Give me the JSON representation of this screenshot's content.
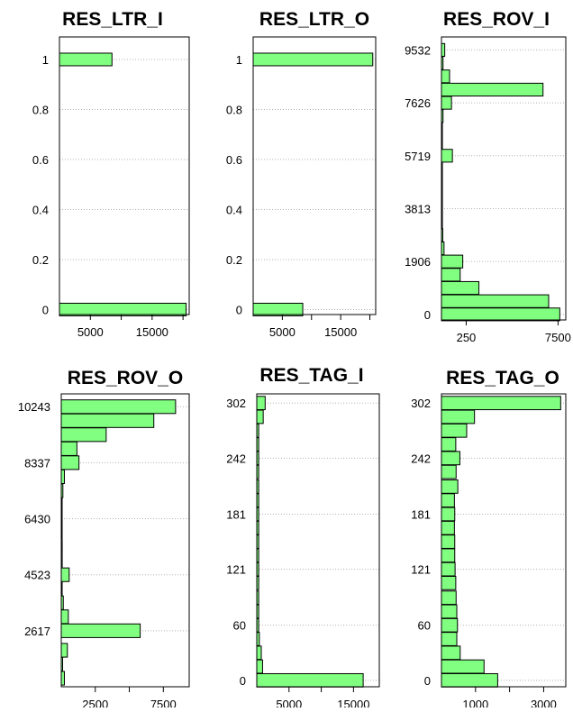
{
  "colors": {
    "bar_fill": "#80FF80",
    "bar_stroke": "#000000",
    "grid": "#b0b0b0"
  },
  "chart_data": [
    {
      "type": "bar",
      "orientation": "horizontal",
      "title": "RES_LTR_I",
      "y_ticks": [
        "0",
        "0.2",
        "0.4",
        "0.6",
        "0.8",
        "1"
      ],
      "x_ticks": [
        "5000",
        "15000"
      ],
      "xlim": [
        0,
        21000
      ],
      "ylim": [
        -0.02,
        1.09
      ],
      "bars": [
        {
          "y": 0,
          "value": 20500
        },
        {
          "y": 1,
          "value": 8500
        }
      ]
    },
    {
      "type": "bar",
      "orientation": "horizontal",
      "title": "RES_LTR_O",
      "y_ticks": [
        "0",
        "0.2",
        "0.4",
        "0.6",
        "0.8",
        "1"
      ],
      "x_ticks": [
        "5000",
        "15000"
      ],
      "xlim": [
        0,
        21000
      ],
      "ylim": [
        -0.02,
        1.09
      ],
      "bars": [
        {
          "y": 0,
          "value": 8500
        },
        {
          "y": 1,
          "value": 20500
        }
      ]
    },
    {
      "type": "bar",
      "orientation": "horizontal",
      "title": "RES_ROV_I",
      "y_ticks": [
        "0",
        "1906",
        "3813",
        "5719",
        "7626",
        "9532"
      ],
      "x_ticks": [
        "250",
        "7500"
      ],
      "x_scale": "log",
      "xlim": [
        100,
        10000
      ],
      "ylim": [
        -200,
        10000
      ],
      "bars": [
        {
          "y": 0,
          "value": 8000
        },
        {
          "y": 476,
          "value": 5300
        },
        {
          "y": 953,
          "value": 400
        },
        {
          "y": 1429,
          "value": 200
        },
        {
          "y": 1906,
          "value": 220
        },
        {
          "y": 2382,
          "value": 110
        },
        {
          "y": 2859,
          "value": 105
        },
        {
          "y": 3335,
          "value": 101
        },
        {
          "y": 3813,
          "value": 101
        },
        {
          "y": 4289,
          "value": 101
        },
        {
          "y": 4766,
          "value": 101
        },
        {
          "y": 5242,
          "value": 101
        },
        {
          "y": 5719,
          "value": 150
        },
        {
          "y": 6195,
          "value": 101
        },
        {
          "y": 6672,
          "value": 101
        },
        {
          "y": 7148,
          "value": 106
        },
        {
          "y": 7626,
          "value": 145
        },
        {
          "y": 8102,
          "value": 4300
        },
        {
          "y": 8579,
          "value": 135
        },
        {
          "y": 9055,
          "value": 106
        },
        {
          "y": 9532,
          "value": 113
        }
      ]
    },
    {
      "type": "bar",
      "orientation": "horizontal",
      "title": "RES_ROV_O",
      "y_ticks": [
        "2617",
        "4523",
        "6430",
        "8337",
        "10243"
      ],
      "x_ticks": [
        "2500",
        "7500"
      ],
      "xlim": [
        0,
        9400
      ],
      "ylim": [
        710,
        10680
      ],
      "bars": [
        {
          "y": 1000,
          "value": 230
        },
        {
          "y": 1479,
          "value": 100
        },
        {
          "y": 1952,
          "value": 450
        },
        {
          "y": 2617,
          "value": 5800
        },
        {
          "y": 3093,
          "value": 520
        },
        {
          "y": 3570,
          "value": 150
        },
        {
          "y": 4047,
          "value": 60
        },
        {
          "y": 4523,
          "value": 580
        },
        {
          "y": 5000,
          "value": 70
        },
        {
          "y": 5477,
          "value": 70
        },
        {
          "y": 5953,
          "value": 60
        },
        {
          "y": 6430,
          "value": 60
        },
        {
          "y": 6907,
          "value": 60
        },
        {
          "y": 7383,
          "value": 120
        },
        {
          "y": 7860,
          "value": 230
        },
        {
          "y": 8337,
          "value": 1300
        },
        {
          "y": 8813,
          "value": 1150
        },
        {
          "y": 9290,
          "value": 3300
        },
        {
          "y": 9767,
          "value": 6800
        },
        {
          "y": 10243,
          "value": 8400
        }
      ]
    },
    {
      "type": "bar",
      "orientation": "horizontal",
      "title": "RES_TAG_I",
      "y_ticks": [
        "0",
        "60",
        "121",
        "181",
        "242",
        "302"
      ],
      "x_ticks": [
        "5000",
        "15000"
      ],
      "xlim": [
        0,
        19000
      ],
      "ylim": [
        -7,
        312
      ],
      "bars": [
        {
          "y": 0,
          "value": 16500
        },
        {
          "y": 15,
          "value": 900
        },
        {
          "y": 30,
          "value": 700
        },
        {
          "y": 45,
          "value": 400
        },
        {
          "y": 60,
          "value": 300
        },
        {
          "y": 75,
          "value": 300
        },
        {
          "y": 90,
          "value": 300
        },
        {
          "y": 106,
          "value": 300
        },
        {
          "y": 121,
          "value": 300
        },
        {
          "y": 136,
          "value": 300
        },
        {
          "y": 151,
          "value": 300
        },
        {
          "y": 166,
          "value": 300
        },
        {
          "y": 181,
          "value": 300
        },
        {
          "y": 196,
          "value": 300
        },
        {
          "y": 211,
          "value": 300
        },
        {
          "y": 227,
          "value": 300
        },
        {
          "y": 242,
          "value": 300
        },
        {
          "y": 257,
          "value": 300
        },
        {
          "y": 272,
          "value": 300
        },
        {
          "y": 287,
          "value": 1000
        },
        {
          "y": 302,
          "value": 1300
        }
      ]
    },
    {
      "type": "bar",
      "orientation": "horizontal",
      "title": "RES_TAG_O",
      "y_ticks": [
        "0",
        "60",
        "121",
        "181",
        "242",
        "302"
      ],
      "x_ticks": [
        "1000",
        "3000"
      ],
      "xlim": [
        0,
        3650
      ],
      "ylim": [
        -7,
        312
      ],
      "bars": [
        {
          "y": 0,
          "value": 1650
        },
        {
          "y": 15,
          "value": 1250
        },
        {
          "y": 30,
          "value": 550
        },
        {
          "y": 45,
          "value": 450
        },
        {
          "y": 60,
          "value": 470
        },
        {
          "y": 75,
          "value": 450
        },
        {
          "y": 90,
          "value": 430
        },
        {
          "y": 106,
          "value": 420
        },
        {
          "y": 121,
          "value": 400
        },
        {
          "y": 136,
          "value": 390
        },
        {
          "y": 151,
          "value": 390
        },
        {
          "y": 166,
          "value": 380
        },
        {
          "y": 181,
          "value": 390
        },
        {
          "y": 196,
          "value": 380
        },
        {
          "y": 211,
          "value": 480
        },
        {
          "y": 227,
          "value": 430
        },
        {
          "y": 242,
          "value": 540
        },
        {
          "y": 257,
          "value": 420
        },
        {
          "y": 272,
          "value": 740
        },
        {
          "y": 287,
          "value": 970
        },
        {
          "y": 302,
          "value": 3500
        }
      ]
    }
  ]
}
